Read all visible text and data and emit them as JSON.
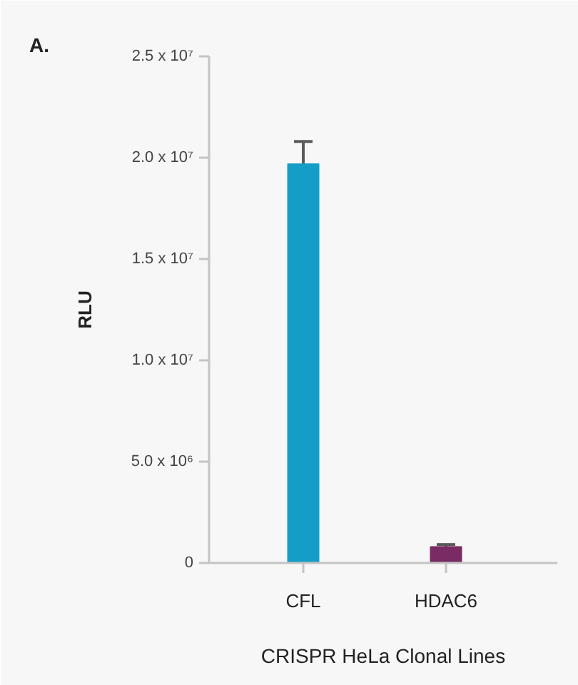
{
  "chart_data": {
    "type": "bar",
    "title": "A.",
    "xlabel": "CRISPR HeLa Clonal Lines",
    "ylabel": "RLU",
    "categories": [
      "CFL",
      "HDAC6"
    ],
    "values": [
      19700000,
      810000
    ],
    "colors": [
      "#149dc7",
      "#7a2b63"
    ],
    "errors": [
      1100000,
      100000
    ],
    "ylim": [
      0,
      25000000
    ],
    "yticks": [
      0,
      {
        "value": 5000000,
        "label": "5.0 x 10⁶"
      },
      {
        "value": 10000000,
        "label": "1.0 x 10⁷"
      },
      {
        "value": 15000000,
        "label": "1.5 x 10⁷"
      },
      {
        "value": 20000000,
        "label": "2.0 x 10⁷"
      },
      {
        "value": 25000000,
        "label": "2.5 x 10⁷"
      }
    ]
  }
}
